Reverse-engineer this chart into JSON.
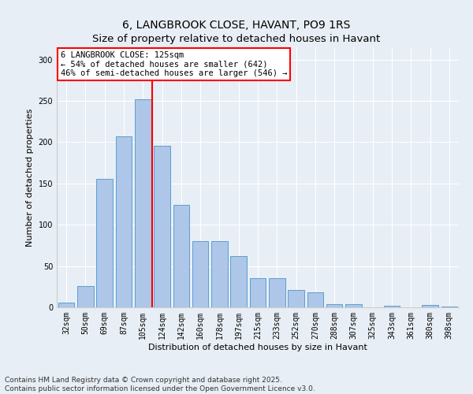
{
  "title": "6, LANGBROOK CLOSE, HAVANT, PO9 1RS",
  "subtitle": "Size of property relative to detached houses in Havant",
  "xlabel": "Distribution of detached houses by size in Havant",
  "ylabel": "Number of detached properties",
  "categories": [
    "32sqm",
    "50sqm",
    "69sqm",
    "87sqm",
    "105sqm",
    "124sqm",
    "142sqm",
    "160sqm",
    "178sqm",
    "197sqm",
    "215sqm",
    "233sqm",
    "252sqm",
    "270sqm",
    "288sqm",
    "307sqm",
    "325sqm",
    "343sqm",
    "361sqm",
    "380sqm",
    "398sqm"
  ],
  "values": [
    6,
    26,
    156,
    207,
    252,
    196,
    124,
    80,
    80,
    62,
    35,
    35,
    21,
    18,
    4,
    4,
    0,
    2,
    0,
    3,
    1
  ],
  "bar_color": "#aec6e8",
  "bar_edge_color": "#5a9fd4",
  "vline_bar_index": 5,
  "vline_color": "red",
  "annotation_text": "6 LANGBROOK CLOSE: 125sqm\n← 54% of detached houses are smaller (642)\n46% of semi-detached houses are larger (546) →",
  "annotation_box_color": "white",
  "annotation_box_edge_color": "red",
  "ylim": [
    0,
    315
  ],
  "yticks": [
    0,
    50,
    100,
    150,
    200,
    250,
    300
  ],
  "bg_color": "#e8eef5",
  "footnote": "Contains HM Land Registry data © Crown copyright and database right 2025.\nContains public sector information licensed under the Open Government Licence v3.0.",
  "title_fontsize": 10,
  "axis_label_fontsize": 8,
  "tick_fontsize": 7,
  "footnote_fontsize": 6.5,
  "annotation_fontsize": 7.5
}
